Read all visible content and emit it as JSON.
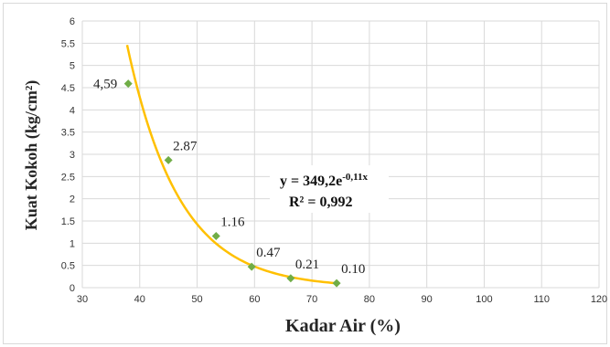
{
  "chart_data": {
    "type": "scatter",
    "xlabel": "Kadar Air (%)",
    "ylabel": "Kuat Kokoh (kg/cm²)",
    "xlim": [
      30,
      120
    ],
    "ylim": [
      0,
      6
    ],
    "x_ticks": [
      30,
      40,
      50,
      60,
      70,
      80,
      90,
      100,
      110,
      120
    ],
    "y_ticks": [
      "0",
      "0.5",
      "1",
      "1.5",
      "2",
      "2.5",
      "3",
      "3.5",
      "4",
      "4.5",
      "5",
      "5.5",
      "6"
    ],
    "grid": true,
    "marker_color": "#70ad47",
    "trend_color": "#ffc000",
    "points": [
      {
        "x": 38,
        "y": 4.59,
        "label": "4,59"
      },
      {
        "x": 45,
        "y": 2.87,
        "label": "2.87"
      },
      {
        "x": 53.3,
        "y": 1.16,
        "label": "1.16"
      },
      {
        "x": 59.5,
        "y": 0.47,
        "label": "0.47"
      },
      {
        "x": 66.3,
        "y": 0.21,
        "label": "0.21"
      },
      {
        "x": 74.3,
        "y": 0.1,
        "label": "0.10"
      }
    ],
    "trendline": {
      "type": "exponential",
      "a": 349.2,
      "b": -0.11,
      "x_range": [
        37.8,
        74.3
      ],
      "equation_base": "y = 349,2e",
      "equation_exponent": "-0,11x",
      "r_squared": "R² = 0,992"
    }
  }
}
